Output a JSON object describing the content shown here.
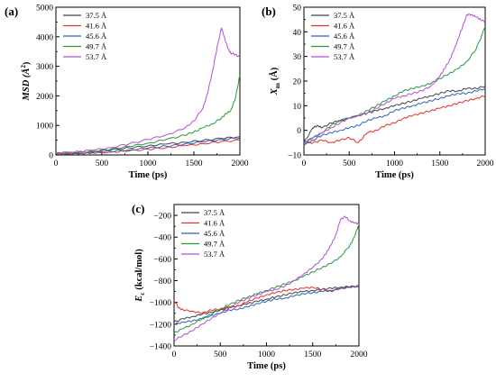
{
  "chart_data": [
    {
      "id": "a",
      "type": "line",
      "panel_label": "(a)",
      "xlabel": "Time (ps)",
      "ylabel_main": "MSD (Å",
      "ylabel_sup": "2",
      "ylabel_tail": ")",
      "xlim": [
        0,
        2000
      ],
      "ylim": [
        0,
        5000
      ],
      "xticks": [
        0,
        500,
        1000,
        1500,
        2000
      ],
      "yticks": [
        0,
        1000,
        2000,
        3000,
        4000,
        5000
      ],
      "grid": false,
      "legend_position": "top-left",
      "series": [
        {
          "name": "37.5 Å",
          "color": "#444444",
          "x": [
            0,
            200,
            400,
            600,
            800,
            1000,
            1200,
            1400,
            1600,
            1800,
            2000
          ],
          "y": [
            50,
            70,
            110,
            170,
            240,
            310,
            370,
            430,
            490,
            560,
            620
          ]
        },
        {
          "name": "41.6 Å",
          "color": "#e8302a",
          "x": [
            0,
            200,
            400,
            600,
            800,
            1000,
            1200,
            1400,
            1600,
            1800,
            2000
          ],
          "y": [
            40,
            50,
            70,
            100,
            140,
            190,
            250,
            310,
            380,
            450,
            500
          ]
        },
        {
          "name": "45.6 Å",
          "color": "#2c62c0",
          "x": [
            0,
            200,
            400,
            600,
            800,
            1000,
            1200,
            1400,
            1600,
            1800,
            2000
          ],
          "y": [
            40,
            55,
            80,
            120,
            170,
            230,
            300,
            370,
            440,
            520,
            580
          ]
        },
        {
          "name": "49.7 Å",
          "color": "#2a9a3a",
          "x": [
            0,
            200,
            400,
            600,
            800,
            1000,
            1200,
            1400,
            1500,
            1600,
            1700,
            1800,
            1850,
            1900,
            1950,
            2000
          ],
          "y": [
            60,
            80,
            130,
            200,
            290,
            400,
            520,
            670,
            780,
            920,
            1050,
            1250,
            1400,
            1500,
            1900,
            2700
          ]
        },
        {
          "name": "53.7 Å",
          "color": "#b34fd6",
          "x": [
            0,
            200,
            400,
            600,
            800,
            1000,
            1200,
            1400,
            1500,
            1600,
            1650,
            1700,
            1750,
            1800,
            1830,
            1870,
            1900,
            1950,
            2000
          ],
          "y": [
            70,
            100,
            160,
            250,
            380,
            520,
            680,
            900,
            1150,
            1600,
            2100,
            2800,
            3600,
            4300,
            4000,
            3600,
            3450,
            3400,
            3300
          ]
        }
      ]
    },
    {
      "id": "b",
      "type": "line",
      "panel_label": "(b)",
      "xlabel": "Time (ps)",
      "ylabel_main": "X",
      "ylabel_sub": "m",
      "ylabel_tail": " (Å)",
      "xlim": [
        0,
        2000
      ],
      "ylim": [
        -10,
        50
      ],
      "xticks": [
        0,
        500,
        1000,
        1500,
        2000
      ],
      "yticks": [
        -10,
        0,
        10,
        20,
        30,
        40,
        50
      ],
      "grid": false,
      "legend_position": "top-left",
      "series": [
        {
          "name": "37.5 Å",
          "color": "#444444",
          "x": [
            0,
            100,
            150,
            200,
            300,
            400,
            500,
            600,
            700,
            800,
            900,
            1000,
            1100,
            1200,
            1300,
            1400,
            1500,
            1600,
            1700,
            1800,
            1900,
            2000
          ],
          "y": [
            -5,
            1,
            2,
            1,
            3,
            4,
            5,
            6,
            7,
            8,
            9,
            10,
            11,
            12,
            13,
            14,
            15,
            16,
            16,
            17,
            17,
            18
          ]
        },
        {
          "name": "41.6 Å",
          "color": "#e8302a",
          "x": [
            0,
            100,
            200,
            300,
            400,
            500,
            600,
            700,
            800,
            900,
            1000,
            1100,
            1200,
            1300,
            1400,
            1500,
            1600,
            1700,
            1800,
            1900,
            2000
          ],
          "y": [
            -5,
            -5,
            -4,
            -5,
            -4,
            -3,
            -5,
            -1,
            0,
            2,
            3,
            5,
            6,
            7,
            8,
            9,
            10,
            11,
            12,
            13,
            14
          ]
        },
        {
          "name": "45.6 Å",
          "color": "#2c62c0",
          "x": [
            0,
            100,
            200,
            300,
            400,
            500,
            600,
            700,
            800,
            900,
            1000,
            1100,
            1200,
            1300,
            1400,
            1500,
            1600,
            1700,
            1800,
            1900,
            2000
          ],
          "y": [
            -6,
            -4,
            -2,
            -1,
            0,
            1,
            2,
            4,
            5,
            6,
            8,
            9,
            10,
            11,
            12,
            13,
            14,
            15,
            15,
            16,
            17
          ]
        },
        {
          "name": "49.7 Å",
          "color": "#2a9a3a",
          "x": [
            0,
            100,
            200,
            300,
            400,
            500,
            600,
            700,
            800,
            900,
            1000,
            1100,
            1200,
            1300,
            1400,
            1500,
            1600,
            1700,
            1800,
            1900,
            2000
          ],
          "y": [
            -5,
            -3,
            -1,
            2,
            4,
            5,
            6,
            8,
            10,
            12,
            14,
            16,
            17,
            18,
            19,
            21,
            23,
            25,
            28,
            33,
            42
          ]
        },
        {
          "name": "53.7 Å",
          "color": "#b34fd6",
          "x": [
            0,
            100,
            200,
            300,
            400,
            500,
            600,
            700,
            800,
            900,
            1000,
            1100,
            1200,
            1300,
            1400,
            1500,
            1550,
            1600,
            1650,
            1700,
            1750,
            1800,
            1850,
            1900,
            1950,
            2000
          ],
          "y": [
            -5,
            -3,
            -1,
            1,
            3,
            5,
            6,
            7,
            9,
            11,
            13,
            14,
            15,
            16,
            18,
            22,
            25,
            28,
            32,
            37,
            42,
            47,
            47,
            46,
            45,
            44
          ]
        }
      ]
    },
    {
      "id": "c",
      "type": "line",
      "panel_label": "(c)",
      "xlabel": "Time (ps)",
      "ylabel_main": "E",
      "ylabel_sub": "c",
      "ylabel_tail": " (kcal/mol)",
      "xlim": [
        0,
        2000
      ],
      "ylim": [
        -1400,
        -100
      ],
      "xticks": [
        0,
        500,
        1000,
        1500,
        2000
      ],
      "yticks": [
        -1400,
        -1200,
        -1000,
        -800,
        -600,
        -400,
        -200
      ],
      "grid": false,
      "legend_position": "top-left",
      "series": [
        {
          "name": "37.5 Å",
          "color": "#444444",
          "x": [
            0,
            100,
            200,
            300,
            400,
            500,
            600,
            700,
            800,
            900,
            1000,
            1100,
            1200,
            1300,
            1400,
            1500,
            1600,
            1700,
            1800,
            1900,
            2000
          ],
          "y": [
            -1180,
            -1150,
            -1130,
            -1110,
            -1090,
            -1070,
            -1050,
            -1030,
            -1010,
            -990,
            -970,
            -950,
            -930,
            -910,
            -900,
            -890,
            -880,
            -870,
            -860,
            -855,
            -850
          ]
        },
        {
          "name": "41.6 Å",
          "color": "#e8302a",
          "x": [
            0,
            50,
            100,
            200,
            300,
            400,
            500,
            600,
            700,
            800,
            900,
            1000,
            1100,
            1200,
            1300,
            1400,
            1500,
            1600,
            1700,
            1800,
            1900,
            2000
          ],
          "y": [
            -980,
            -1050,
            -1070,
            -1080,
            -1100,
            -1070,
            -1060,
            -1040,
            -1030,
            -990,
            -960,
            -930,
            -910,
            -890,
            -880,
            -870,
            -860,
            -880,
            -900,
            -870,
            -860,
            -850
          ]
        },
        {
          "name": "45.6 Å",
          "color": "#2c62c0",
          "x": [
            0,
            100,
            200,
            300,
            400,
            500,
            600,
            700,
            800,
            900,
            1000,
            1100,
            1200,
            1300,
            1400,
            1500,
            1600,
            1700,
            1800,
            1900,
            2000
          ],
          "y": [
            -1200,
            -1180,
            -1170,
            -1150,
            -1120,
            -1100,
            -1070,
            -1060,
            -1040,
            -1010,
            -990,
            -970,
            -960,
            -940,
            -920,
            -910,
            -900,
            -890,
            -870,
            -860,
            -850
          ]
        },
        {
          "name": "49.7 Å",
          "color": "#2a9a3a",
          "x": [
            0,
            100,
            200,
            300,
            400,
            500,
            600,
            700,
            800,
            900,
            1000,
            1100,
            1200,
            1300,
            1400,
            1500,
            1600,
            1700,
            1800,
            1900,
            1950,
            2000
          ],
          "y": [
            -1280,
            -1240,
            -1200,
            -1150,
            -1110,
            -1060,
            -1020,
            -980,
            -950,
            -920,
            -890,
            -860,
            -830,
            -800,
            -760,
            -720,
            -680,
            -640,
            -580,
            -480,
            -400,
            -280
          ]
        },
        {
          "name": "53.7 Å",
          "color": "#b34fd6",
          "x": [
            0,
            100,
            200,
            300,
            400,
            500,
            600,
            700,
            800,
            900,
            1000,
            1100,
            1200,
            1300,
            1400,
            1500,
            1600,
            1650,
            1700,
            1750,
            1800,
            1850,
            1900,
            1950,
            2000
          ],
          "y": [
            -1350,
            -1300,
            -1260,
            -1200,
            -1150,
            -1100,
            -1050,
            -1000,
            -960,
            -930,
            -900,
            -880,
            -850,
            -800,
            -740,
            -680,
            -600,
            -540,
            -470,
            -380,
            -240,
            -210,
            -250,
            -270,
            -275
          ]
        }
      ]
    }
  ]
}
